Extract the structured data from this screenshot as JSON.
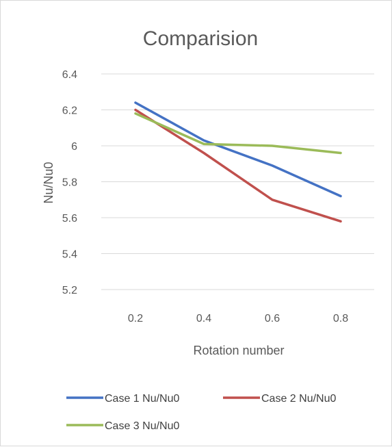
{
  "chart_data": {
    "type": "line",
    "title": "Comparision",
    "xlabel": "Rotation number",
    "ylabel": "Nu/Nu0",
    "x": [
      "0.2",
      "0.4",
      "0.6",
      "0.8"
    ],
    "y_ticks": [
      "5.2",
      "5.4",
      "5.6",
      "5.8",
      "6",
      "6.2",
      "6.4"
    ],
    "ylim": [
      5.2,
      6.4
    ],
    "grid": true,
    "legend_position": "bottom",
    "series": [
      {
        "name": "Case 1 Nu/Nu0",
        "color": "#4472c4",
        "values": [
          6.24,
          6.03,
          5.89,
          5.72
        ]
      },
      {
        "name": "Case 2 Nu/Nu0",
        "color": "#c0504d",
        "values": [
          6.2,
          5.96,
          5.7,
          5.58
        ]
      },
      {
        "name": "Case 3 Nu/Nu0",
        "color": "#9bbb59",
        "values": [
          6.18,
          6.01,
          6.0,
          5.96
        ]
      }
    ]
  }
}
